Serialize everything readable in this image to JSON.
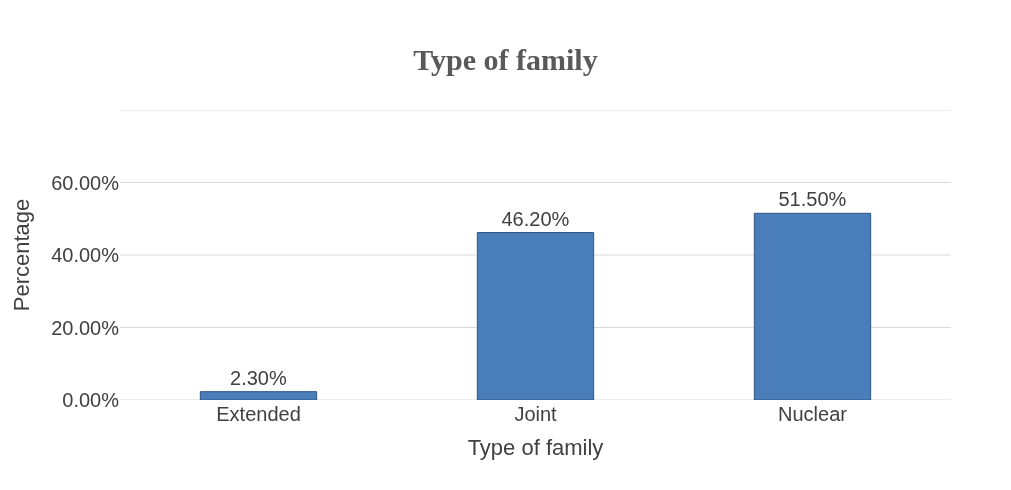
{
  "chart_data": {
    "type": "bar",
    "title": "Type of family",
    "xlabel": "Type of family",
    "ylabel": "Percentage",
    "categories": [
      "Extended",
      "Joint",
      "Nuclear"
    ],
    "values": [
      2.3,
      46.2,
      51.5
    ],
    "value_labels": [
      "2.30%",
      "46.20%",
      "51.50%"
    ],
    "color": "#4a7ebb",
    "ylim": [
      0,
      80
    ],
    "yticks": [
      {
        "value": 0,
        "label": "0.00%"
      },
      {
        "value": 20,
        "label": "20.00%"
      },
      {
        "value": 40,
        "label": "40.00%"
      },
      {
        "value": 60,
        "label": "60.00%"
      },
      {
        "value": 80,
        "label": null
      }
    ],
    "grid": "y"
  }
}
